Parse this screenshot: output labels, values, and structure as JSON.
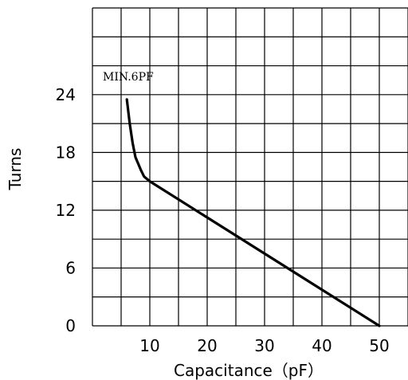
{
  "chart_data": {
    "type": "line",
    "title": "",
    "xlabel": "Capacitance（pF）",
    "ylabel": "Turns",
    "xlim": [
      0,
      55
    ],
    "ylim": [
      0,
      33
    ],
    "x_tick_labels": [
      "10",
      "20",
      "30",
      "40",
      "50"
    ],
    "y_tick_labels": [
      "0",
      "6",
      "12",
      "18",
      "24"
    ],
    "grid": true,
    "annotation": "MIN.6PF",
    "series": [
      {
        "x": [
          6,
          6.5,
          7,
          7.5,
          8,
          8.5,
          9,
          10,
          50
        ],
        "y": [
          23.5,
          21,
          19,
          17.5,
          16.8,
          16.1,
          15.5,
          15,
          0
        ]
      }
    ]
  }
}
